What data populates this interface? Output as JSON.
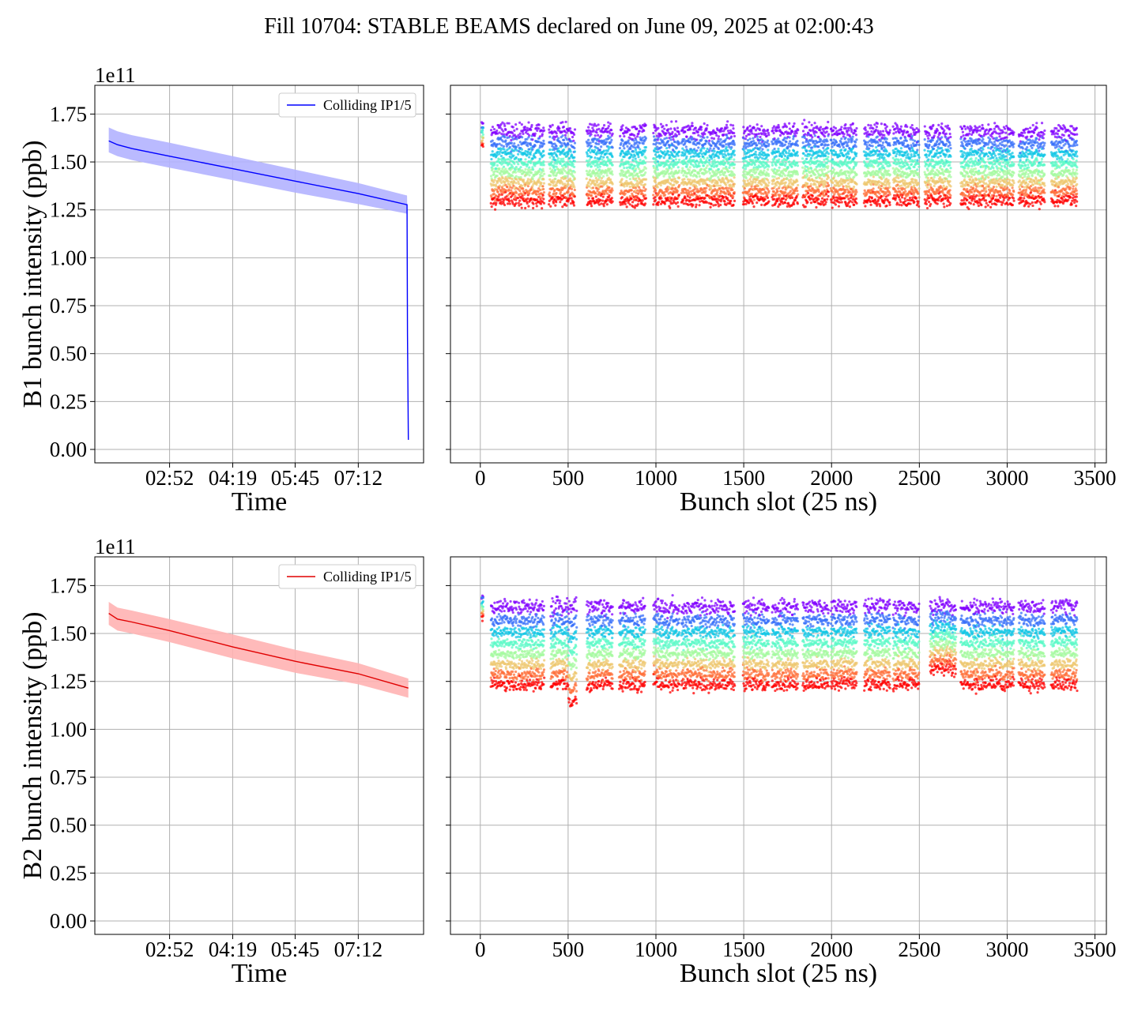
{
  "figure": {
    "title": "Fill 10704: STABLE BEAMS declared on June 09, 2025 at 02:00:43"
  },
  "colors": {
    "b1_line": "#0000ff",
    "b1_band": "#b3b3ff",
    "b2_line": "#e00000",
    "b2_band": "#ffb3b3",
    "grid": "#b0b0b0",
    "colormap": "rainbow"
  },
  "chart_data": [
    {
      "id": "b1-time",
      "type": "line",
      "title": "",
      "xlabel": "Time",
      "ylabel": "B1 bunch intensity (ppb)",
      "y_offset_label": "1e11",
      "xlim": [
        1.15,
        8.7
      ],
      "ylim": [
        -0.07,
        1.9
      ],
      "xticks": [
        2.8667,
        4.3167,
        5.75,
        7.2
      ],
      "xtick_labels": [
        "02:52",
        "04:19",
        "05:45",
        "07:12"
      ],
      "yticks": [
        0,
        0.25,
        0.5,
        0.75,
        1.0,
        1.25,
        1.5,
        1.75
      ],
      "ytick_labels": [
        "0.00",
        "0.25",
        "0.50",
        "0.75",
        "1.00",
        "1.25",
        "1.50",
        "1.75"
      ],
      "grid": true,
      "legend": {
        "location": "upper right",
        "entries": [
          "Colliding IP1/5"
        ]
      },
      "series": [
        {
          "name": "Colliding IP1/5",
          "x": [
            1.47,
            1.67,
            2.0,
            2.87,
            4.32,
            5.75,
            7.2,
            8.32,
            8.33,
            8.35
          ],
          "y": [
            1.61,
            1.59,
            1.57,
            1.53,
            1.465,
            1.4,
            1.335,
            1.277,
            0.6,
            0.05
          ],
          "band_upper": [
            1.68,
            1.66,
            1.64,
            1.6,
            1.53,
            1.46,
            1.39,
            1.325,
            1.2,
            0.05
          ],
          "band_lower": [
            1.55,
            1.53,
            1.51,
            1.47,
            1.405,
            1.34,
            1.28,
            1.23,
            1.2,
            0.05
          ]
        }
      ]
    },
    {
      "id": "b1-slot",
      "type": "scatter",
      "title": "",
      "xlabel": "Bunch slot (25 ns)",
      "ylabel": "",
      "xlim": [
        -170,
        3565
      ],
      "ylim": [
        -0.07,
        1.9
      ],
      "xticks": [
        0,
        500,
        1000,
        1500,
        2000,
        2500,
        3000,
        3500
      ],
      "xtick_labels": [
        "0",
        "500",
        "1000",
        "1500",
        "2000",
        "2500",
        "3000",
        "3500"
      ],
      "grid": true,
      "color_map": "rainbow (purple = earliest, red = latest)",
      "trains_start_slots": [
        60,
        215,
        390,
        605,
        795,
        985,
        1145,
        1300,
        1495,
        1660,
        1835,
        1995,
        2185,
        2350,
        2530,
        2735,
        2890,
        3065,
        3250
      ],
      "train_length_slots": 150,
      "intensity_start_range": [
        1.5,
        1.82
      ],
      "intensity_end_range": [
        1.18,
        1.42
      ]
    },
    {
      "id": "b2-time",
      "type": "line",
      "title": "",
      "xlabel": "Time",
      "ylabel": "B2 bunch intensity (ppb)",
      "y_offset_label": "1e11",
      "xlim": [
        1.15,
        8.7
      ],
      "ylim": [
        -0.07,
        1.9
      ],
      "xticks": [
        2.8667,
        4.3167,
        5.75,
        7.2
      ],
      "xtick_labels": [
        "02:52",
        "04:19",
        "05:45",
        "07:12"
      ],
      "yticks": [
        0,
        0.25,
        0.5,
        0.75,
        1.0,
        1.25,
        1.5,
        1.75
      ],
      "ytick_labels": [
        "0.00",
        "0.25",
        "0.50",
        "0.75",
        "1.00",
        "1.25",
        "1.50",
        "1.75"
      ],
      "grid": true,
      "legend": {
        "location": "upper right",
        "entries": [
          "Colliding IP1/5"
        ]
      },
      "series": [
        {
          "name": "Colliding IP1/5",
          "x": [
            1.47,
            1.67,
            2.0,
            2.87,
            4.32,
            5.75,
            7.2,
            8.35
          ],
          "y": [
            1.605,
            1.575,
            1.56,
            1.515,
            1.43,
            1.355,
            1.29,
            1.215
          ],
          "band_upper": [
            1.665,
            1.635,
            1.62,
            1.575,
            1.495,
            1.415,
            1.345,
            1.265
          ],
          "band_lower": [
            1.545,
            1.515,
            1.5,
            1.455,
            1.37,
            1.295,
            1.235,
            1.165
          ]
        }
      ]
    },
    {
      "id": "b2-slot",
      "type": "scatter",
      "title": "",
      "xlabel": "Bunch slot (25 ns)",
      "ylabel": "",
      "xlim": [
        -170,
        3565
      ],
      "ylim": [
        -0.07,
        1.9
      ],
      "xticks": [
        0,
        500,
        1000,
        1500,
        2000,
        2500,
        3000,
        3500
      ],
      "xtick_labels": [
        "0",
        "500",
        "1000",
        "1500",
        "2000",
        "2500",
        "3000",
        "3500"
      ],
      "grid": true,
      "color_map": "rainbow (purple = earliest, red = latest)",
      "trains_start_slots": [
        60,
        215,
        400,
        605,
        790,
        985,
        1145,
        1300,
        1495,
        1660,
        1835,
        1995,
        2185,
        2350,
        2560,
        2735,
        2890,
        3065,
        3250
      ],
      "train_length_slots": 150,
      "intensity_start_range": [
        1.48,
        1.8
      ],
      "intensity_end_range": [
        1.12,
        1.35
      ]
    }
  ]
}
